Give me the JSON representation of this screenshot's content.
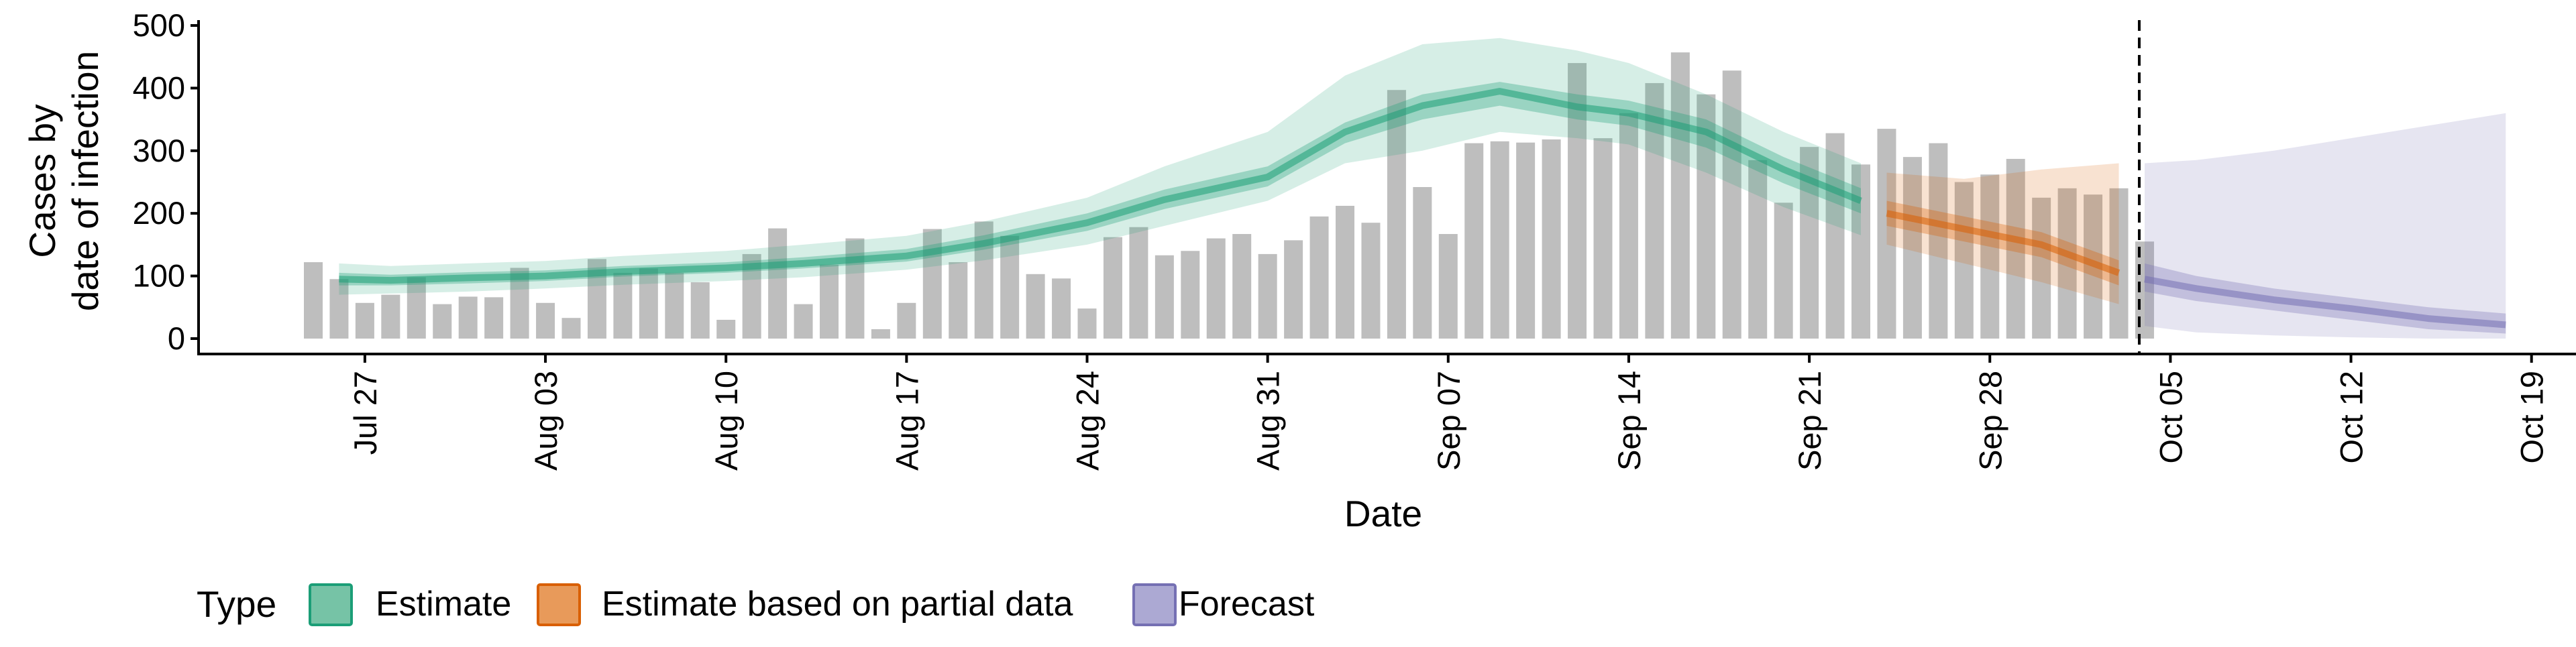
{
  "chart_data": {
    "type": "bar",
    "xlabel": "Date",
    "ylabel_lines": [
      "Cases by",
      "date of infection"
    ],
    "ylim": [
      0,
      500
    ],
    "y_ticks": [
      0,
      100,
      200,
      300,
      400,
      500
    ],
    "x_start_date": "2020-07-25",
    "x_ticks": [
      {
        "date": "2020-07-27",
        "label": "Jul 27"
      },
      {
        "date": "2020-08-03",
        "label": "Aug 03"
      },
      {
        "date": "2020-08-10",
        "label": "Aug 10"
      },
      {
        "date": "2020-08-17",
        "label": "Aug 17"
      },
      {
        "date": "2020-08-24",
        "label": "Aug 24"
      },
      {
        "date": "2020-08-31",
        "label": "Aug 31"
      },
      {
        "date": "2020-09-07",
        "label": "Sep 07"
      },
      {
        "date": "2020-09-14",
        "label": "Sep 14"
      },
      {
        "date": "2020-09-21",
        "label": "Sep 21"
      },
      {
        "date": "2020-09-28",
        "label": "Sep 28"
      },
      {
        "date": "2020-10-05",
        "label": "Oct 05"
      },
      {
        "date": "2020-10-12",
        "label": "Oct 12"
      },
      {
        "date": "2020-10-19",
        "label": "Oct 19"
      }
    ],
    "reported_cases": [
      122,
      95,
      57,
      70,
      98,
      55,
      67,
      66,
      113,
      57,
      33,
      127,
      105,
      112,
      105,
      90,
      30,
      135,
      176,
      55,
      118,
      160,
      15,
      57,
      175,
      122,
      187,
      164,
      103,
      96,
      48,
      162,
      178,
      133,
      140,
      160,
      167,
      135,
      157,
      195,
      212,
      185,
      397,
      242,
      167,
      312,
      315,
      313,
      318,
      440,
      320,
      360,
      408,
      457,
      390,
      428,
      285,
      217,
      306,
      328,
      278,
      335,
      290,
      312,
      250,
      262,
      287,
      225,
      240,
      230,
      240,
      155
    ],
    "vline_date": "2020-10-04",
    "series": [
      {
        "name": "Estimate",
        "color": "#1b9e77",
        "dates": [
          "2020-07-26",
          "2020-07-28",
          "2020-07-31",
          "2020-08-03",
          "2020-08-06",
          "2020-08-10",
          "2020-08-13",
          "2020-08-17",
          "2020-08-20",
          "2020-08-24",
          "2020-08-27",
          "2020-08-31",
          "2020-09-03",
          "2020-09-06",
          "2020-09-09",
          "2020-09-12",
          "2020-09-14",
          "2020-09-17",
          "2020-09-20",
          "2020-09-23"
        ],
        "median": [
          95,
          93,
          97,
          100,
          107,
          113,
          120,
          132,
          152,
          185,
          222,
          258,
          330,
          372,
          395,
          370,
          360,
          330,
          270,
          220
        ],
        "lower_50": [
          85,
          85,
          88,
          92,
          99,
          105,
          112,
          123,
          142,
          172,
          207,
          243,
          312,
          350,
          372,
          350,
          340,
          305,
          248,
          200
        ],
        "upper_50": [
          105,
          102,
          106,
          109,
          116,
          122,
          130,
          143,
          165,
          200,
          238,
          275,
          345,
          390,
          410,
          390,
          380,
          350,
          290,
          240
        ],
        "lower_90": [
          70,
          72,
          75,
          80,
          86,
          92,
          98,
          110,
          125,
          150,
          180,
          220,
          280,
          300,
          330,
          320,
          310,
          265,
          210,
          165
        ],
        "upper_90": [
          120,
          116,
          120,
          124,
          132,
          140,
          150,
          164,
          187,
          225,
          275,
          330,
          420,
          470,
          480,
          460,
          440,
          390,
          330,
          280
        ]
      },
      {
        "name": "Estimate based on partial data",
        "color": "#d95f02",
        "dates": [
          "2020-09-24",
          "2020-09-27",
          "2020-09-30",
          "2020-10-03"
        ],
        "median": [
          200,
          175,
          150,
          105
        ],
        "lower_50": [
          180,
          155,
          130,
          85
        ],
        "upper_50": [
          220,
          195,
          170,
          125
        ],
        "lower_90": [
          150,
          120,
          90,
          55
        ],
        "upper_90": [
          265,
          255,
          270,
          280
        ]
      },
      {
        "name": "Forecast",
        "color": "#7570b3",
        "dates": [
          "2020-10-04",
          "2020-10-06",
          "2020-10-09",
          "2020-10-12",
          "2020-10-15",
          "2020-10-18"
        ],
        "median": [
          95,
          80,
          62,
          48,
          32,
          22
        ],
        "lower_50": [
          75,
          60,
          45,
          30,
          15,
          8
        ],
        "upper_50": [
          120,
          100,
          80,
          65,
          50,
          40
        ],
        "lower_90": [
          20,
          10,
          5,
          2,
          0,
          0
        ],
        "upper_90": [
          280,
          285,
          300,
          320,
          340,
          360
        ]
      }
    ],
    "legend": {
      "title": "Type",
      "items": [
        "Estimate",
        "Estimate based on partial data",
        "Forecast"
      ],
      "fill_colors": [
        "#76c3a6",
        "#e89a5a",
        "#aca9d3"
      ],
      "stroke_colors": [
        "#1b9e77",
        "#d95f02",
        "#7570b3"
      ],
      "placement": "bottom-left"
    }
  }
}
